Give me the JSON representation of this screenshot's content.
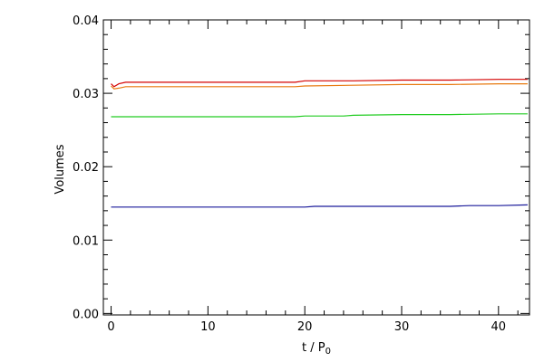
{
  "chart_data": {
    "type": "line",
    "title": "",
    "xlabel": "t / P",
    "xlabel_sub": "0",
    "ylabel": "Volumes",
    "xlim": [
      -0.8,
      43.2
    ],
    "ylim": [
      -0.0002,
      0.04
    ],
    "x_ticks": [
      0,
      10,
      20,
      30,
      40
    ],
    "x_tick_labels": [
      "0",
      "10",
      "20",
      "30",
      "40"
    ],
    "y_ticks": [
      0.0,
      0.01,
      0.02,
      0.03,
      0.04
    ],
    "y_tick_labels": [
      "0.00",
      "0.01",
      "0.02",
      "0.03",
      "0.04"
    ],
    "grid": false,
    "series": [
      {
        "color": "#d40000",
        "x": [
          0,
          0.3,
          0.8,
          1.5,
          5,
          10,
          15,
          19,
          20,
          25,
          30,
          35,
          40,
          43
        ],
        "y": [
          0.0313,
          0.0309,
          0.0313,
          0.0315,
          0.0315,
          0.0315,
          0.0315,
          0.0315,
          0.0317,
          0.0317,
          0.0318,
          0.0318,
          0.0319,
          0.0319
        ]
      },
      {
        "color": "#e87a10",
        "x": [
          0,
          0.3,
          0.8,
          1.5,
          5,
          10,
          15,
          19,
          20,
          25,
          30,
          35,
          40,
          43
        ],
        "y": [
          0.031,
          0.0306,
          0.0307,
          0.0309,
          0.0309,
          0.0309,
          0.0309,
          0.0309,
          0.031,
          0.0311,
          0.0312,
          0.0312,
          0.0313,
          0.0313
        ]
      },
      {
        "color": "#22cc22",
        "x": [
          0,
          5,
          10,
          15,
          19,
          20,
          24,
          25,
          30,
          35,
          40,
          43
        ],
        "y": [
          0.0268,
          0.0268,
          0.0268,
          0.0268,
          0.0268,
          0.0269,
          0.0269,
          0.027,
          0.0271,
          0.0271,
          0.0272,
          0.0272
        ]
      },
      {
        "color": "#1a1a9a",
        "x": [
          0,
          5,
          10,
          15,
          20,
          21,
          25,
          30,
          35,
          37,
          40,
          43
        ],
        "y": [
          0.0145,
          0.0145,
          0.0145,
          0.0145,
          0.0145,
          0.0146,
          0.0146,
          0.0146,
          0.0146,
          0.0147,
          0.0147,
          0.0148
        ]
      }
    ]
  }
}
